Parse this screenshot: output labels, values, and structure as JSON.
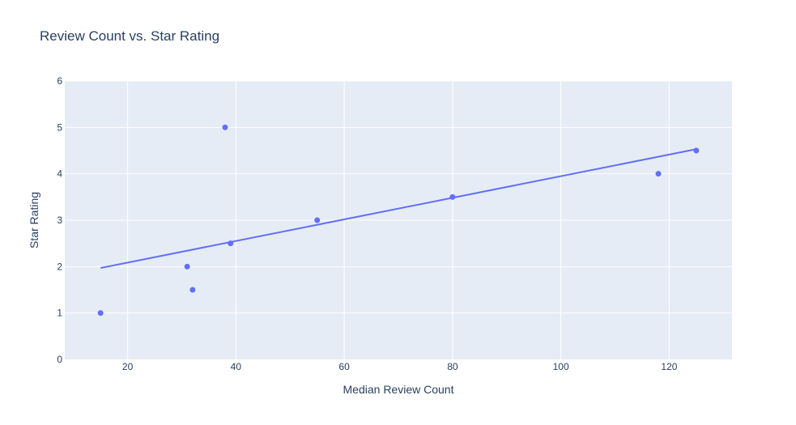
{
  "chart_data": {
    "type": "scatter",
    "title": "Review Count vs. Star Rating",
    "xlabel": "Median Review Count",
    "ylabel": "Star Rating",
    "xlim": [
      8.4,
      131.6
    ],
    "ylim": [
      0,
      6
    ],
    "xticks": [
      20,
      40,
      60,
      80,
      100,
      120
    ],
    "yticks": [
      0,
      1,
      2,
      3,
      4,
      5,
      6
    ],
    "grid": true,
    "legend": "none",
    "series": [
      {
        "mode": "markers",
        "x": [
          15,
          31,
          32,
          38,
          39,
          55,
          80,
          118,
          125
        ],
        "y": [
          1,
          2,
          1.5,
          5,
          2.5,
          3,
          3.5,
          4,
          4.5
        ]
      },
      {
        "mode": "lines",
        "x": [
          15,
          125
        ],
        "y": [
          1.97,
          4.53
        ]
      }
    ],
    "colors": {
      "marker": "#636efa",
      "line": "#636efa",
      "plot_bg": "#e5ecf6",
      "grid": "#ffffff",
      "text": "#2a3f5f"
    }
  }
}
